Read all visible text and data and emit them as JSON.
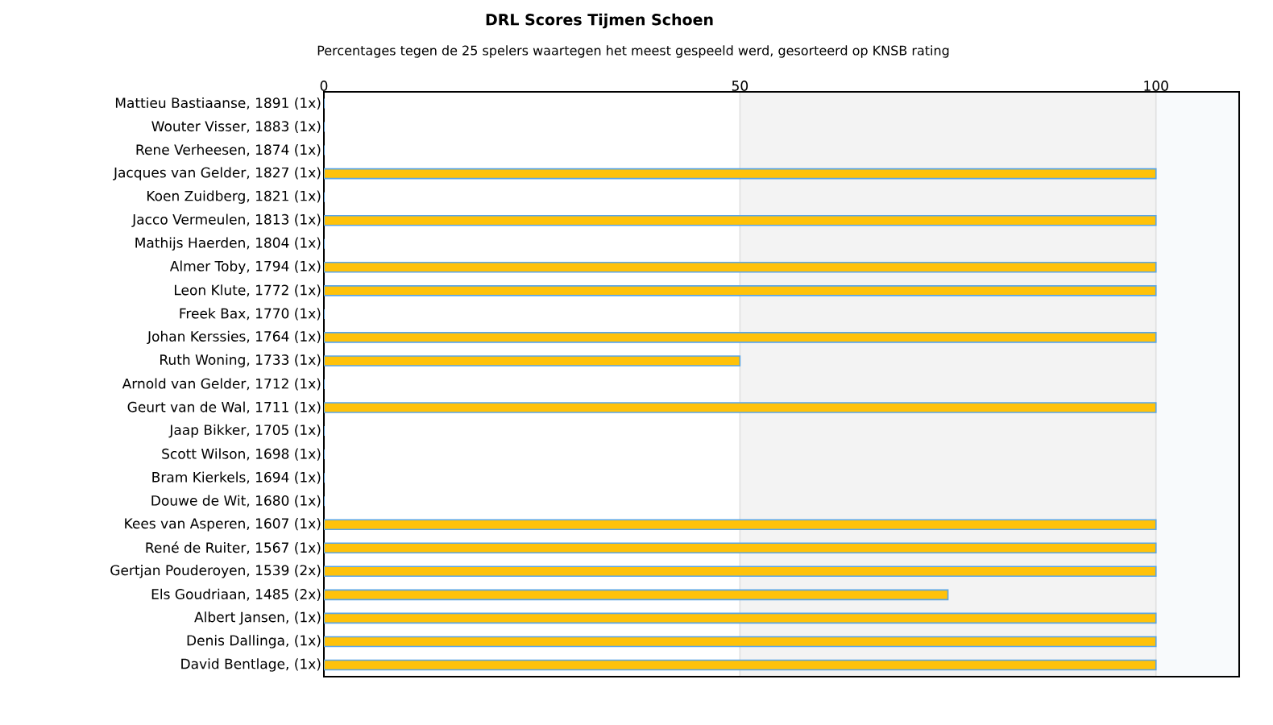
{
  "chart_data": {
    "type": "bar",
    "orientation": "horizontal",
    "title": "DRL Scores Tijmen Schoen",
    "subtitle": "Percentages tegen de 25 spelers waartegen het meest gespeeld werd, gesorteerd op KNSB rating",
    "categories": [
      "Mattieu Bastiaanse, 1891 (1x)",
      "Wouter Visser, 1883 (1x)",
      "Rene Verheesen, 1874 (1x)",
      "Jacques van Gelder, 1827 (1x)",
      "Koen Zuidberg, 1821 (1x)",
      "Jacco Vermeulen, 1813 (1x)",
      "Mathijs Haerden, 1804 (1x)",
      "Almer Toby, 1794 (1x)",
      "Leon Klute, 1772 (1x)",
      "Freek Bax, 1770 (1x)",
      "Johan Kerssies, 1764 (1x)",
      "Ruth Woning, 1733 (1x)",
      "Arnold van Gelder, 1712 (1x)",
      "Geurt van de Wal, 1711 (1x)",
      "Jaap Bikker, 1705 (1x)",
      "Scott Wilson, 1698 (1x)",
      "Bram Kierkels, 1694 (1x)",
      "Douwe de Wit, 1680 (1x)",
      "Kees van Asperen, 1607 (1x)",
      "René de Ruiter, 1567 (1x)",
      "Gertjan Pouderoyen, 1539 (2x)",
      "Els Goudriaan, 1485 (2x)",
      "Albert Jansen,  (1x)",
      "Denis Dallinga,  (1x)",
      "David Bentlage,  (1x)"
    ],
    "values": [
      0,
      0,
      0,
      100,
      0,
      100,
      0,
      100,
      100,
      0,
      100,
      50,
      0,
      100,
      0,
      0,
      0,
      0,
      100,
      100,
      100,
      75,
      100,
      100,
      100
    ],
    "color": "#ffc20a",
    "xlim": [
      0,
      110
    ],
    "xticks": [
      0,
      50,
      100
    ],
    "grid": "x",
    "bands": [
      {
        "axis": "x",
        "from": 50,
        "to": 100,
        "color": "#f3f3f3"
      },
      {
        "axis": "x",
        "from": 100,
        "to": 110,
        "color": "#f8fafc"
      }
    ]
  }
}
